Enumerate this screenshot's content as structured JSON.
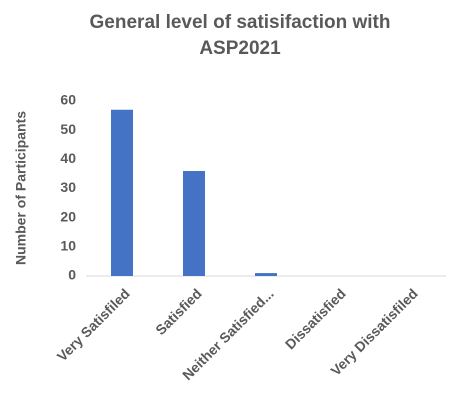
{
  "chart_data": {
    "type": "bar",
    "title": "General level of satisifaction with ASP2021",
    "y_label": "Number of Participants",
    "categories": [
      "Very Satisfiled",
      "Satisfied",
      "Neither Satisfied...",
      "Dissatisfied",
      "Very Dissatisfiled"
    ],
    "values": [
      57,
      36,
      1,
      0,
      0
    ],
    "color": "#4472c4",
    "ylim": [
      0,
      60
    ],
    "yticks": [
      0,
      10,
      20,
      30,
      40,
      50,
      60
    ],
    "grid": false
  }
}
